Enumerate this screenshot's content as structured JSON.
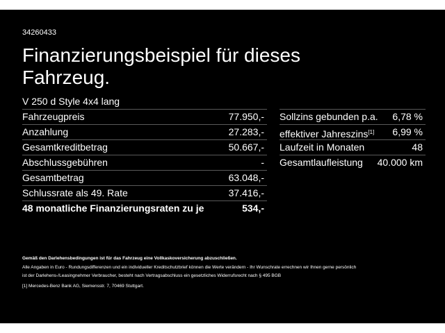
{
  "header": {
    "id": "34260433",
    "title_lines": [
      "Finanzierungsbeispiel für dieses",
      "Fahrzeug."
    ],
    "model": "V 250 d Style 4x4 lang"
  },
  "left_table": {
    "rows": [
      [
        "Fahrzeugpreis",
        "77.950,-"
      ],
      [
        "Anzahlung",
        "27.283,-"
      ],
      [
        "Gesamtkreditbetrag",
        "50.667,-"
      ],
      [
        "Abschlussgebühren",
        "-"
      ],
      [
        "Gesamtbetrag",
        "63.048,-"
      ],
      [
        "Schlussrate als 49. Rate",
        "37.416,-"
      ],
      [
        "48 monatliche Finanzierungsraten zu je",
        "534,-"
      ]
    ]
  },
  "right_table": {
    "rows": [
      [
        "Sollzins gebunden p.a.",
        "6,78 %"
      ],
      [
        "effektiver Jahreszins",
        "6,99 %"
      ],
      [
        "Laufzeit in Monaten",
        "48"
      ],
      [
        "Gesamtlaufleistung",
        "40.000 km"
      ]
    ],
    "footnote_mark": "[1]"
  },
  "notes": {
    "bold": "Gemäß den Darlehensbedingungen ist für das Fahrzeug eine Vollkaskoversicherung abzuschließen.",
    "lines": [
      "Alle Angaben in Euro - Rundungsdifferenzen und ein individueller Kreditschutzbrief können die Werte verändern - Ihr Wunschrate errechnen wir Ihnen gerne persönlich",
      "ist der Darlehens-/Leasingnehmer Verbraucher, besteht nach Vertragsabschluss ein gesetzliches Widerrufsrecht nach § 495 BGB"
    ],
    "footnote": "[1]  Mercedes-Benz Bank AG, Siemensstr. 7, 70469 Stuttgart."
  }
}
